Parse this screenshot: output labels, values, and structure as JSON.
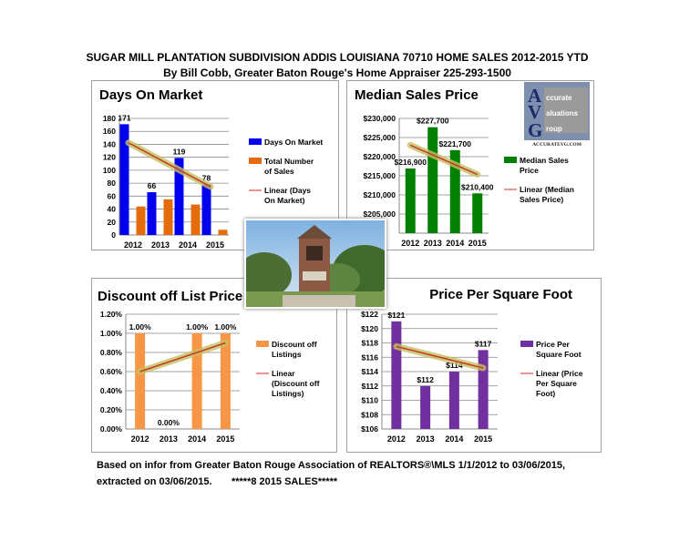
{
  "header": {
    "line1": "SUGAR MILL PLANTATION SUBDIVISION ADDIS LOUISIANA 70710 HOME SALES 2012-2015 YTD",
    "line2": "By Bill Cobb, Greater Baton Rouge's Home Appraiser 225-293-1500"
  },
  "footer": {
    "line1": "Based on infor from Greater Baton Rouge Association of REALTORS®\\MLS 1/1/2012 to 03/06/2015,",
    "line2": "extracted on 03/06/2015.       *****8 2015 SALES*****"
  },
  "logo": {
    "letters": "AVG",
    "words": [
      "ccurate",
      "aluations",
      "roup"
    ],
    "url": "ACCURATEVG.COM"
  },
  "chart_data": [
    {
      "type": "bar",
      "title": "Days On Market",
      "categories": [
        "2012",
        "2013",
        "2014",
        "2015"
      ],
      "series": [
        {
          "name": "Days On Market",
          "values": [
            171,
            66,
            119,
            78
          ],
          "color": "#0000ee",
          "labels": [
            "171",
            "66",
            "119",
            "78"
          ]
        },
        {
          "name": "Total Number of Sales",
          "values": [
            44,
            55,
            47,
            8
          ],
          "color": "#e46c0a"
        }
      ],
      "trendline": {
        "name": "Linear (Days On Market)",
        "series": 0
      },
      "ylim": [
        0,
        180
      ],
      "yticks": [
        0,
        20,
        40,
        60,
        80,
        100,
        120,
        140,
        160,
        180
      ],
      "ytick_labels": [
        "0",
        "20",
        "40",
        "60",
        "80",
        "100",
        "120",
        "140",
        "160",
        "180"
      ],
      "grid": true,
      "legend": "right"
    },
    {
      "type": "bar",
      "title": "Median Sales Price",
      "categories": [
        "2012",
        "2013",
        "2014",
        "2015"
      ],
      "series": [
        {
          "name": "Median Sales Price",
          "values": [
            216900,
            227700,
            221700,
            210400
          ],
          "color": "#008000",
          "labels": [
            "$216,900",
            "$227,700",
            "$221,700",
            "$210,400"
          ]
        }
      ],
      "trendline": {
        "name": "Linear (Median Sales Price)",
        "series": 0
      },
      "ylim": [
        200000,
        230000
      ],
      "yticks": [
        205000,
        210000,
        215000,
        220000,
        225000,
        230000
      ],
      "ytick_labels": [
        "$205,000",
        "$210,000",
        "$215,000",
        "$220,000",
        "$225,000",
        "$230,000"
      ],
      "grid": true,
      "legend": "right"
    },
    {
      "type": "bar",
      "title": "Discount off List Price",
      "categories": [
        "2012",
        "2013",
        "2014",
        "2015"
      ],
      "series": [
        {
          "name": "Discount off Listings",
          "values": [
            1.0,
            0.0,
            1.0,
            1.0
          ],
          "color": "#f79646",
          "labels": [
            "1.00%",
            "0.00%",
            "1.00%",
            "1.00%"
          ]
        }
      ],
      "trendline": {
        "name": "Linear (Discount off Listings)",
        "series": 0
      },
      "ylim": [
        0,
        1.2
      ],
      "yticks": [
        0,
        0.2,
        0.4,
        0.6,
        0.8,
        1.0,
        1.2
      ],
      "ytick_labels": [
        "0.00%",
        "0.20%",
        "0.40%",
        "0.60%",
        "0.80%",
        "1.00%",
        "1.20%"
      ],
      "grid": true,
      "legend": "right"
    },
    {
      "type": "bar",
      "title": "Price Per Square Foot",
      "categories": [
        "2012",
        "2013",
        "2014",
        "2015"
      ],
      "series": [
        {
          "name": "Price Per Square Foot",
          "values": [
            121,
            112,
            114,
            117
          ],
          "color": "#7030a0",
          "labels": [
            "$121",
            "$112",
            "$114",
            "$117"
          ]
        }
      ],
      "trendline": {
        "name": "Linear (Price Per Square Foot)",
        "series": 0
      },
      "ylim": [
        106,
        122
      ],
      "yticks": [
        106,
        108,
        110,
        112,
        114,
        116,
        118,
        120,
        122
      ],
      "ytick_labels": [
        "$106",
        "$108",
        "$110",
        "$112",
        "$114",
        "$116",
        "$118",
        "$120",
        "$122"
      ],
      "grid": true,
      "legend": "right"
    }
  ]
}
